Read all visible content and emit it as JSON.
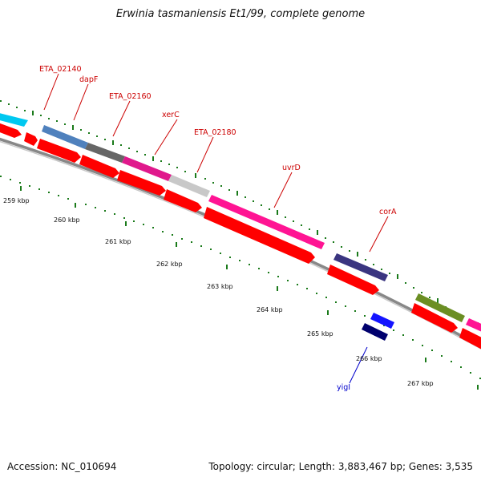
{
  "title": "Erwinia tasmaniensis Et1/99, complete genome",
  "footer": {
    "accession": "Accession: NC_010694",
    "summary": "Topology: circular; Length: 3,883,467 bp; Genes: 3,535"
  },
  "colors": {
    "label_red": "#cc0000",
    "label_blue": "#0000cc",
    "tick_green": "#1a7a1a",
    "backbone": "#808080",
    "cds_red": "#ff0000"
  },
  "genes": [
    {
      "label": "ETA_02140",
      "color": "#cc0000"
    },
    {
      "label": "dapF",
      "color": "#cc0000"
    },
    {
      "label": "ETA_02160",
      "color": "#cc0000"
    },
    {
      "label": "xerC",
      "color": "#cc0000"
    },
    {
      "label": "ETA_02180",
      "color": "#cc0000"
    },
    {
      "label": "uvrD",
      "color": "#cc0000"
    },
    {
      "label": "corA",
      "color": "#cc0000"
    },
    {
      "label": "yigI",
      "color": "#0000cc"
    }
  ],
  "ticks": [
    "259 kbp",
    "260 kbp",
    "261 kbp",
    "262 kbp",
    "263 kbp",
    "264 kbp",
    "265 kbp",
    "266 kbp",
    "267 kbp"
  ]
}
